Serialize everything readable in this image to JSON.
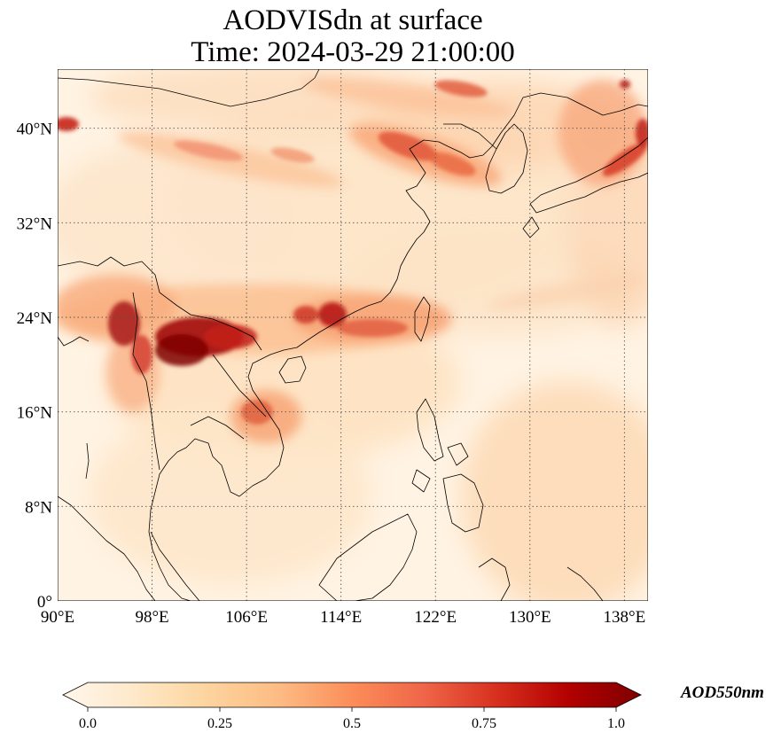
{
  "map": {
    "title_line1": "AODVISdn at surface",
    "title_line2": "Time: 2024-03-29 21:00:00",
    "lon_range": [
      90,
      140
    ],
    "lat_range": [
      0,
      45
    ],
    "lon_ticks": [
      {
        "value": 90,
        "label": "90°E"
      },
      {
        "value": 98,
        "label": "98°E"
      },
      {
        "value": 106,
        "label": "106°E"
      },
      {
        "value": 114,
        "label": "114°E"
      },
      {
        "value": 122,
        "label": "122°E"
      },
      {
        "value": 130,
        "label": "130°E"
      },
      {
        "value": 138,
        "label": "138°E"
      }
    ],
    "lat_ticks": [
      {
        "value": 0,
        "label": "0°"
      },
      {
        "value": 8,
        "label": "8°N"
      },
      {
        "value": 16,
        "label": "16°N"
      },
      {
        "value": 24,
        "label": "24°N"
      },
      {
        "value": 32,
        "label": "32°N"
      },
      {
        "value": 40,
        "label": "40°N"
      }
    ],
    "gridlines": "dotted"
  },
  "colorbar": {
    "title": "AOD550nm",
    "colormap": "OrRd",
    "range": [
      0.0,
      1.0
    ],
    "extend": "both",
    "ticks": [
      {
        "value": 0.0,
        "label": "0.0"
      },
      {
        "value": 0.25,
        "label": "0.25"
      },
      {
        "value": 0.5,
        "label": "0.5"
      },
      {
        "value": 0.75,
        "label": "0.75"
      },
      {
        "value": 1.0,
        "label": "1.0"
      }
    ],
    "colors": [
      "#fff7ec",
      "#fee8c8",
      "#fdd49e",
      "#fdbb84",
      "#fc8d59",
      "#ef6548",
      "#d7301f",
      "#b30000",
      "#7f0000"
    ]
  },
  "aod_features": [
    {
      "name": "myanmar-northern-laos",
      "lon": 101.5,
      "lat": 22.2,
      "value": 0.95
    },
    {
      "name": "northeast-india-myanmar",
      "lon": 95.0,
      "lat": 23.0,
      "value": 0.85
    },
    {
      "name": "south-china",
      "lon": 113.5,
      "lat": 24.0,
      "value": 0.75
    },
    {
      "name": "laos-central",
      "lon": 105.5,
      "lat": 16.5,
      "value": 0.6
    },
    {
      "name": "north-korea-bohai",
      "lon": 121.0,
      "lat": 38.0,
      "value": 0.55
    },
    {
      "name": "japan-honshu",
      "lon": 137.5,
      "lat": 37.5,
      "value": 0.7
    },
    {
      "name": "west-edge-40n",
      "lon": 90.5,
      "lat": 40.2,
      "value": 0.75
    },
    {
      "name": "upper-band-43n",
      "lon": 124.0,
      "lat": 43.0,
      "value": 0.55
    }
  ]
}
